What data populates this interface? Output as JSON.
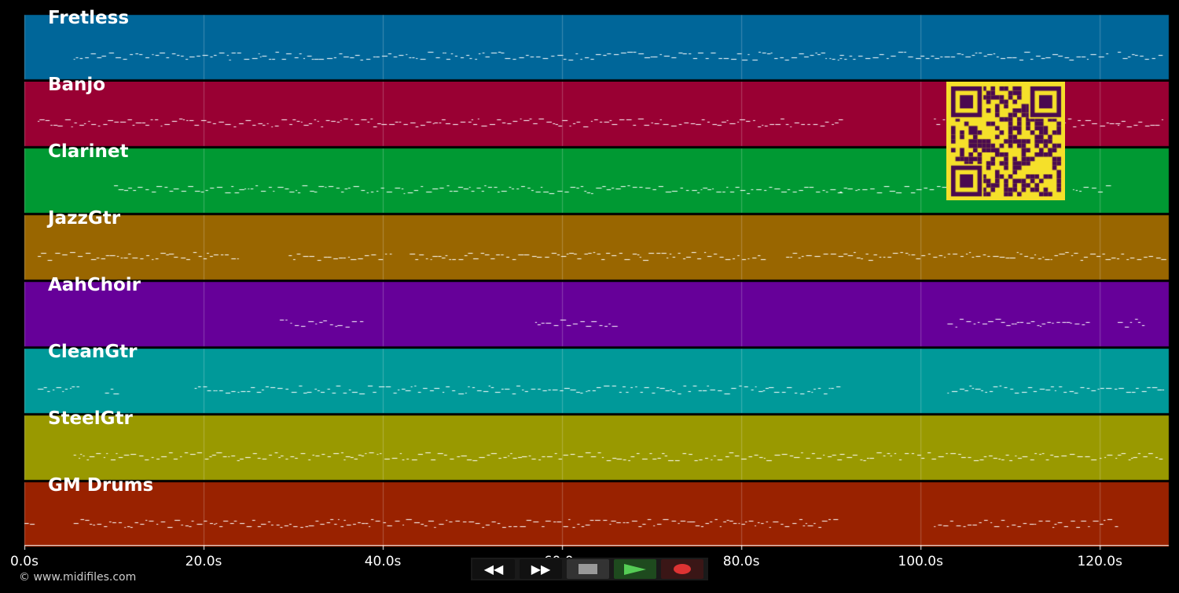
{
  "tracks": [
    {
      "name": "Fretless",
      "color": "#006699",
      "active": [
        [
          5.5,
          91
        ],
        [
          91,
          100
        ],
        [
          100,
          121
        ],
        [
          122,
          127
        ]
      ]
    },
    {
      "name": "Banjo",
      "color": "#990033",
      "active": [
        [
          1.5,
          91
        ],
        [
          101.5,
          122
        ],
        [
          122,
          127
        ]
      ]
    },
    {
      "name": "Clarinet",
      "color": "#009933",
      "active": [
        [
          10,
          91
        ],
        [
          91,
          104
        ],
        [
          117,
          121
        ]
      ]
    },
    {
      "name": "JazzGtr",
      "color": "#996600",
      "active": [
        [
          1.5,
          24
        ],
        [
          29.5,
          41
        ],
        [
          43,
          83
        ],
        [
          85,
          127
        ]
      ]
    },
    {
      "name": "AahChoir",
      "color": "#660099",
      "active": [
        [
          28.5,
          38
        ],
        [
          57,
          66
        ],
        [
          103,
          119
        ],
        [
          122,
          125
        ]
      ]
    },
    {
      "name": "CleanGtr",
      "color": "#009999",
      "active": [
        [
          1.5,
          6
        ],
        [
          9,
          10
        ],
        [
          19,
          91
        ],
        [
          103,
          127
        ]
      ]
    },
    {
      "name": "SteelGtr",
      "color": "#999900",
      "active": [
        [
          5.5,
          91
        ],
        [
          91,
          127
        ]
      ]
    },
    {
      "name": "GM Drums",
      "color": "#992200",
      "active": [
        [
          0,
          1
        ],
        [
          5.5,
          91
        ],
        [
          101.5,
          122
        ]
      ]
    }
  ],
  "axis": {
    "max_seconds": 127.7,
    "ticks": [
      "0.0s",
      "20.0s",
      "40.0s",
      "60.0s",
      "80.0s",
      "100.0s",
      "120.0s"
    ],
    "tick_values": [
      0,
      20,
      40,
      60,
      80,
      100,
      120
    ]
  },
  "footer": {
    "copyright": "© www.midifiles.com"
  },
  "controls": {
    "rewind": "rewind",
    "forward": "fast-forward",
    "stop": "stop",
    "play": "play",
    "record": "record"
  }
}
